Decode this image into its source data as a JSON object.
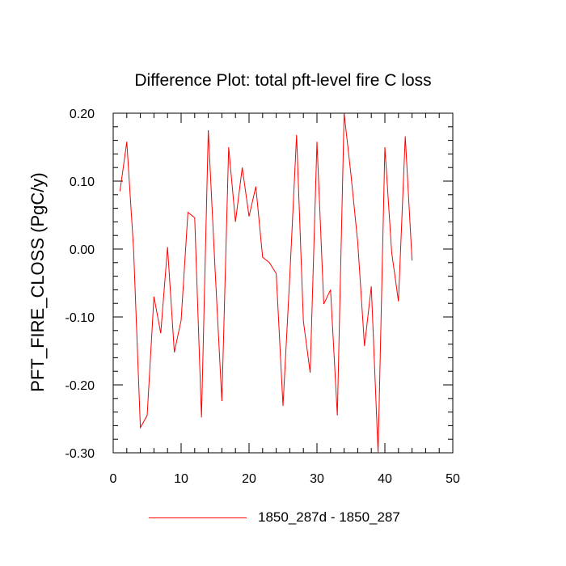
{
  "chart_data": {
    "type": "line",
    "title": "Difference Plot: total pft-level fire C loss",
    "xlabel": "",
    "ylabel": "PFT_FIRE_CLOSS  (PgC/y)",
    "xlim": [
      0,
      50
    ],
    "ylim": [
      -0.3,
      0.2
    ],
    "x_ticks": [
      0,
      10,
      20,
      30,
      40,
      50
    ],
    "x_tick_labels": [
      "0",
      "10",
      "20",
      "30",
      "40",
      "50"
    ],
    "y_ticks": [
      -0.3,
      -0.2,
      -0.1,
      0.0,
      0.1,
      0.2
    ],
    "y_tick_labels": [
      "-0.30",
      "-0.20",
      "-0.10",
      "0.00",
      "0.10",
      "0.20"
    ],
    "grid": false,
    "legend_position": "bottom",
    "series": [
      {
        "name": "1850_287d - 1850_287",
        "color": "#ff0000",
        "x": [
          1,
          2,
          3,
          4,
          5,
          6,
          7,
          8,
          9,
          10,
          11,
          12,
          13,
          14,
          15,
          16,
          17,
          18,
          19,
          20,
          21,
          22,
          23,
          24,
          25,
          26,
          27,
          28,
          29,
          30,
          31,
          32,
          33,
          34,
          35,
          36,
          37,
          38,
          39,
          40,
          41,
          42,
          43,
          44
        ],
        "values": [
          0.085,
          0.158,
          0.0,
          -0.263,
          -0.245,
          -0.07,
          -0.124,
          0.003,
          -0.152,
          -0.105,
          0.054,
          0.046,
          -0.248,
          0.175,
          -0.03,
          -0.224,
          0.15,
          0.04,
          0.12,
          0.048,
          0.092,
          -0.012,
          -0.02,
          -0.036,
          -0.231,
          -0.04,
          0.168,
          -0.106,
          -0.182,
          0.158,
          -0.081,
          -0.06,
          -0.245,
          0.2,
          0.11,
          0.01,
          -0.143,
          -0.055,
          -0.3,
          0.15,
          -0.005,
          -0.077,
          0.166,
          -0.017
        ]
      }
    ]
  }
}
